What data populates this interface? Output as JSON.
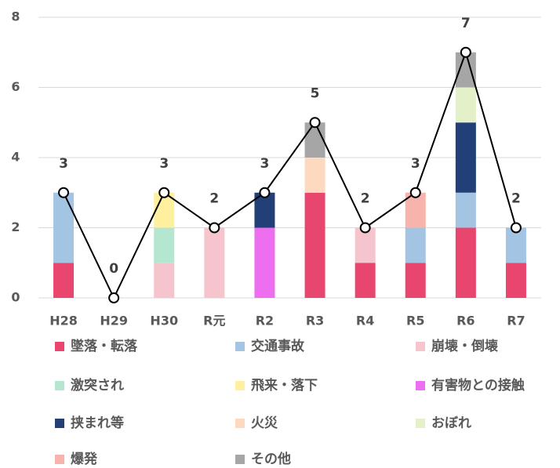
{
  "chart_data": {
    "type": "stacked_bar_line",
    "categories": [
      "H28",
      "H29",
      "H30",
      "R元",
      "R2",
      "R3",
      "R4",
      "R5",
      "R6",
      "R7"
    ],
    "series": [
      {
        "name": "墜落・転落",
        "color": "#e8466e",
        "values": [
          1,
          0,
          0,
          0,
          0,
          3,
          1,
          1,
          2,
          1
        ]
      },
      {
        "name": "交通事故",
        "color": "#a4c4e4",
        "values": [
          2,
          0,
          0,
          0,
          0,
          0,
          0,
          1,
          1,
          1
        ]
      },
      {
        "name": "崩壊・倒壊",
        "color": "#f5c4cc",
        "values": [
          0,
          0,
          1,
          2,
          0,
          0,
          1,
          0,
          0,
          0
        ]
      },
      {
        "name": "激突され",
        "color": "#b4e6d0",
        "values": [
          0,
          0,
          1,
          0,
          0,
          0,
          0,
          0,
          0,
          0
        ]
      },
      {
        "name": "飛来・落下",
        "color": "#fff0a0",
        "values": [
          0,
          0,
          1,
          0,
          0,
          0,
          0,
          0,
          0,
          0
        ]
      },
      {
        "name": "有害物との接触",
        "color": "#ee6ef0",
        "values": [
          0,
          0,
          0,
          0,
          2,
          0,
          0,
          0,
          0,
          0
        ]
      },
      {
        "name": "挟まれ等",
        "color": "#233f77",
        "values": [
          0,
          0,
          0,
          0,
          1,
          0,
          0,
          0,
          2,
          0
        ]
      },
      {
        "name": "火災",
        "color": "#fdd9c0",
        "values": [
          0,
          0,
          0,
          0,
          0,
          1,
          0,
          0,
          0,
          0
        ]
      },
      {
        "name": "おぼれ",
        "color": "#e4f0c8",
        "values": [
          0,
          0,
          0,
          0,
          0,
          0,
          0,
          0,
          1,
          0
        ]
      },
      {
        "name": "爆発",
        "color": "#f8b4ac",
        "values": [
          0,
          0,
          0,
          0,
          0,
          0,
          0,
          1,
          0,
          0
        ]
      },
      {
        "name": "その他",
        "color": "#a6a6a6",
        "values": [
          0,
          0,
          0,
          0,
          0,
          1,
          0,
          0,
          1,
          0
        ]
      }
    ],
    "line_values": [
      3,
      0,
      3,
      2,
      3,
      5,
      2,
      3,
      7,
      2
    ],
    "line_color": "#000000",
    "ylim": [
      0,
      8
    ],
    "yticks": [
      0,
      2,
      4,
      6,
      8
    ],
    "grid": true
  }
}
